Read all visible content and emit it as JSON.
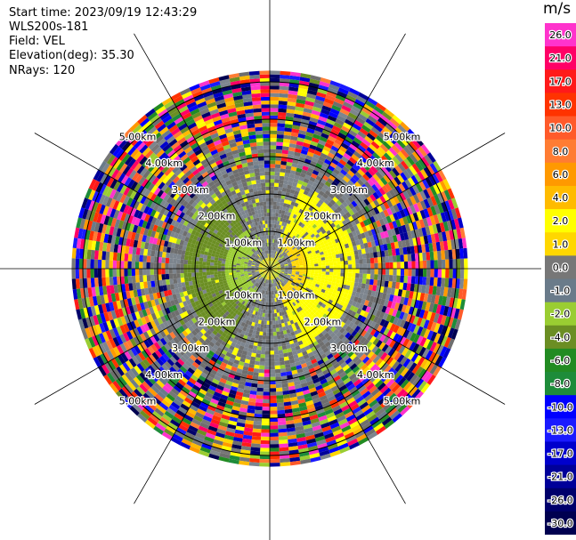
{
  "header": {
    "start_time": "Start time: 2023/09/19 12:43:29",
    "instrument": "WLS200s-181",
    "field": "Field: VEL",
    "elevation": "Elevation(deg): 35.30",
    "nrays": "NRays: 120"
  },
  "colorbar": {
    "unit": "m/s",
    "levels": [
      {
        "label": "26.0",
        "color": "#ff33cc"
      },
      {
        "label": "21.0",
        "color": "#ff0066"
      },
      {
        "label": "17.0",
        "color": "#ff1a1a"
      },
      {
        "label": "13.0",
        "color": "#ff3300"
      },
      {
        "label": "10.0",
        "color": "#ff5a2a"
      },
      {
        "label": "8.0",
        "color": "#ff7c33"
      },
      {
        "label": "6.0",
        "color": "#ff9900"
      },
      {
        "label": "4.0",
        "color": "#ffbb00"
      },
      {
        "label": "2.0",
        "color": "#ffff00"
      },
      {
        "label": "1.0",
        "color": "#ffd700"
      },
      {
        "label": "0.0",
        "color": "#777777"
      },
      {
        "label": "-1.0",
        "color": "#6a7b8a"
      },
      {
        "label": "-2.0",
        "color": "#9acd32"
      },
      {
        "label": "-4.0",
        "color": "#6b8e23"
      },
      {
        "label": "-6.0",
        "color": "#228b22"
      },
      {
        "label": "-8.0",
        "color": "#1e8c3a"
      },
      {
        "label": "-10.0",
        "color": "#0000ff"
      },
      {
        "label": "-13.0",
        "color": "#1a1aff"
      },
      {
        "label": "-17.0",
        "color": "#0000cc"
      },
      {
        "label": "-21.0",
        "color": "#000099"
      },
      {
        "label": "-26.0",
        "color": "#00006b"
      },
      {
        "label": "-30.0",
        "color": "#000050"
      }
    ]
  },
  "chart_data": {
    "type": "heatmap",
    "projection": "polar PPI",
    "field": "VEL",
    "units": "m/s",
    "range_rings_km": [
      1.0,
      2.0,
      3.0,
      4.0,
      5.0
    ],
    "ring_labels": [
      "1.00km",
      "2.00km",
      "3.00km",
      "4.00km",
      "5.00km"
    ],
    "spokes_deg": [
      0,
      30,
      60,
      90,
      120,
      150,
      180,
      210,
      240,
      270,
      300,
      330
    ],
    "max_range_km": 5.3,
    "gates_km": 0.1,
    "nrays": 120
  }
}
